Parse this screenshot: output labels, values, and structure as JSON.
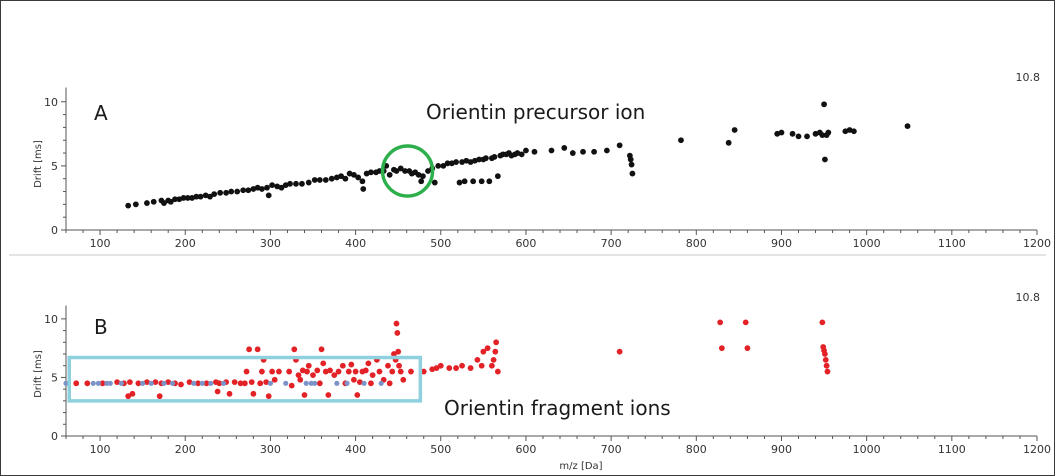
{
  "figure": {
    "divider_color": "#c8c8c8",
    "annotation_colors": {
      "circle": "#2db04b",
      "box": "#8fd0de"
    }
  },
  "chart_data": [
    {
      "type": "scatter",
      "panel_label": "A",
      "corner_value": "10.8",
      "ylabel": "Drift [ms]",
      "xlabel": "",
      "xlim": [
        60,
        1200
      ],
      "ylim": [
        0,
        10.8
      ],
      "x_ticks": [
        100,
        200,
        300,
        400,
        500,
        600,
        700,
        800,
        900,
        1000,
        1100,
        1200
      ],
      "y_ticks": [
        0,
        5,
        10
      ],
      "annotation": {
        "text": "Orientin precursor ion",
        "shape": "circle",
        "center": [
          461,
          4.6
        ]
      },
      "series": [
        {
          "color": "#111111",
          "points": [
            [
              133,
              1.9
            ],
            [
              142,
              2.0
            ],
            [
              155,
              2.1
            ],
            [
              163,
              2.2
            ],
            [
              172,
              2.3
            ],
            [
              175,
              2.1
            ],
            [
              180,
              2.3
            ],
            [
              183,
              2.2
            ],
            [
              188,
              2.4
            ],
            [
              193,
              2.4
            ],
            [
              198,
              2.5
            ],
            [
              203,
              2.5
            ],
            [
              208,
              2.5
            ],
            [
              213,
              2.6
            ],
            [
              218,
              2.6
            ],
            [
              224,
              2.7
            ],
            [
              229,
              2.6
            ],
            [
              234,
              2.8
            ],
            [
              241,
              2.9
            ],
            [
              248,
              2.9
            ],
            [
              254,
              3.0
            ],
            [
              261,
              3.0
            ],
            [
              268,
              3.1
            ],
            [
              274,
              3.1
            ],
            [
              280,
              3.2
            ],
            [
              285,
              3.3
            ],
            [
              290,
              3.2
            ],
            [
              296,
              3.3
            ],
            [
              298,
              2.7
            ],
            [
              302,
              3.5
            ],
            [
              308,
              3.4
            ],
            [
              313,
              3.3
            ],
            [
              318,
              3.5
            ],
            [
              323,
              3.6
            ],
            [
              330,
              3.6
            ],
            [
              337,
              3.6
            ],
            [
              345,
              3.7
            ],
            [
              352,
              3.9
            ],
            [
              358,
              3.9
            ],
            [
              365,
              3.9
            ],
            [
              372,
              4.0
            ],
            [
              378,
              4.1
            ],
            [
              383,
              4.2
            ],
            [
              388,
              4.0
            ],
            [
              393,
              4.4
            ],
            [
              398,
              4.3
            ],
            [
              403,
              4.1
            ],
            [
              408,
              3.8
            ],
            [
              409,
              3.2
            ],
            [
              413,
              4.4
            ],
            [
              418,
              4.5
            ],
            [
              424,
              4.5
            ],
            [
              428,
              4.6
            ],
            [
              433,
              4.6
            ],
            [
              436,
              5.0
            ],
            [
              440,
              4.3
            ],
            [
              445,
              4.7
            ],
            [
              448,
              4.6
            ],
            [
              453,
              4.8
            ],
            [
              458,
              4.6
            ],
            [
              463,
              4.6
            ],
            [
              466,
              4.4
            ],
            [
              470,
              4.5
            ],
            [
              474,
              4.3
            ],
            [
              477,
              3.8
            ],
            [
              479,
              4.2
            ],
            [
              485,
              4.6
            ],
            [
              490,
              4.8
            ],
            [
              493,
              3.7
            ],
            [
              497,
              5.0
            ],
            [
              503,
              5.0
            ],
            [
              508,
              5.2
            ],
            [
              513,
              5.2
            ],
            [
              518,
              5.3
            ],
            [
              522,
              3.7
            ],
            [
              525,
              5.3
            ],
            [
              528,
              3.8
            ],
            [
              530,
              5.4
            ],
            [
              535,
              5.3
            ],
            [
              538,
              3.8
            ],
            [
              540,
              5.4
            ],
            [
              545,
              5.5
            ],
            [
              548,
              3.8
            ],
            [
              550,
              5.5
            ],
            [
              553,
              5.6
            ],
            [
              557,
              3.8
            ],
            [
              560,
              5.6
            ],
            [
              563,
              5.7
            ],
            [
              567,
              4.2
            ],
            [
              570,
              5.8
            ],
            [
              573,
              5.9
            ],
            [
              577,
              5.9
            ],
            [
              580,
              6.0
            ],
            [
              583,
              5.8
            ],
            [
              587,
              5.9
            ],
            [
              590,
              6.0
            ],
            [
              595,
              5.9
            ],
            [
              600,
              6.2
            ],
            [
              610,
              6.1
            ],
            [
              630,
              6.2
            ],
            [
              645,
              6.4
            ],
            [
              655,
              6.0
            ],
            [
              667,
              6.1
            ],
            [
              680,
              6.1
            ],
            [
              695,
              6.2
            ],
            [
              710,
              6.6
            ],
            [
              722,
              5.8
            ],
            [
              723,
              5.5
            ],
            [
              724,
              5.1
            ],
            [
              725,
              4.4
            ],
            [
              782,
              7.0
            ],
            [
              838,
              6.8
            ],
            [
              845,
              7.8
            ],
            [
              895,
              7.5
            ],
            [
              900,
              7.6
            ],
            [
              913,
              7.5
            ],
            [
              920,
              7.3
            ],
            [
              930,
              7.3
            ],
            [
              940,
              7.5
            ],
            [
              945,
              7.6
            ],
            [
              948,
              7.4
            ],
            [
              950,
              9.8
            ],
            [
              951,
              5.5
            ],
            [
              953,
              7.4
            ],
            [
              955,
              7.6
            ],
            [
              975,
              7.7
            ],
            [
              980,
              7.8
            ],
            [
              985,
              7.7
            ],
            [
              1048,
              8.1
            ]
          ]
        }
      ]
    },
    {
      "type": "scatter",
      "panel_label": "B",
      "corner_value": "10.8",
      "ylabel": "Drift [ms]",
      "xlabel": "m/z [Da]",
      "xlim": [
        60,
        1200
      ],
      "ylim": [
        0,
        10.8
      ],
      "x_ticks": [
        100,
        200,
        300,
        400,
        500,
        600,
        700,
        800,
        900,
        1000,
        1100,
        1200
      ],
      "y_ticks": [
        0,
        5,
        10
      ],
      "annotation": {
        "text": "Orientin fragment ions",
        "shape": "box",
        "x_range": [
          65,
          476
        ],
        "y_range": [
          3.0,
          6.7
        ]
      },
      "series": [
        {
          "color": "#e32227",
          "points": [
            [
              72,
              4.5
            ],
            [
              85,
              4.5
            ],
            [
              103,
              4.5
            ],
            [
              120,
              4.6
            ],
            [
              128,
              4.5
            ],
            [
              133,
              3.4
            ],
            [
              135,
              4.6
            ],
            [
              138,
              3.6
            ],
            [
              145,
              4.5
            ],
            [
              155,
              4.6
            ],
            [
              165,
              4.6
            ],
            [
              170,
              3.4
            ],
            [
              172,
              4.5
            ],
            [
              180,
              4.6
            ],
            [
              188,
              4.5
            ],
            [
              195,
              4.4
            ],
            [
              205,
              4.6
            ],
            [
              215,
              4.5
            ],
            [
              225,
              4.5
            ],
            [
              236,
              4.6
            ],
            [
              238,
              3.8
            ],
            [
              240,
              4.5
            ],
            [
              248,
              4.6
            ],
            [
              252,
              3.6
            ],
            [
              258,
              4.6
            ],
            [
              265,
              4.5
            ],
            [
              270,
              4.5
            ],
            [
              272,
              5.5
            ],
            [
              275,
              7.4
            ],
            [
              278,
              4.6
            ],
            [
              280,
              3.6
            ],
            [
              285,
              7.4
            ],
            [
              288,
              4.5
            ],
            [
              290,
              5.5
            ],
            [
              292,
              6.5
            ],
            [
              295,
              4.6
            ],
            [
              298,
              3.4
            ],
            [
              302,
              5.5
            ],
            [
              305,
              4.8
            ],
            [
              310,
              5.5
            ],
            [
              322,
              5.5
            ],
            [
              325,
              4.3
            ],
            [
              328,
              7.4
            ],
            [
              330,
              6.5
            ],
            [
              333,
              5.2
            ],
            [
              335,
              4.8
            ],
            [
              338,
              5.6
            ],
            [
              340,
              3.5
            ],
            [
              343,
              5.5
            ],
            [
              345,
              6.0
            ],
            [
              350,
              5.2
            ],
            [
              355,
              5.6
            ],
            [
              358,
              4.5
            ],
            [
              360,
              7.4
            ],
            [
              362,
              6.2
            ],
            [
              365,
              5.5
            ],
            [
              368,
              3.5
            ],
            [
              370,
              5.6
            ],
            [
              375,
              5.2
            ],
            [
              380,
              5.5
            ],
            [
              385,
              6.0
            ],
            [
              388,
              4.5
            ],
            [
              392,
              5.5
            ],
            [
              395,
              6.1
            ],
            [
              398,
              4.8
            ],
            [
              400,
              5.5
            ],
            [
              402,
              3.5
            ],
            [
              405,
              4.6
            ],
            [
              408,
              5.5
            ],
            [
              412,
              5.6
            ],
            [
              415,
              6.2
            ],
            [
              418,
              4.5
            ],
            [
              420,
              5.2
            ],
            [
              425,
              6.5
            ],
            [
              428,
              5.5
            ],
            [
              433,
              4.8
            ],
            [
              438,
              6.0
            ],
            [
              440,
              4.5
            ],
            [
              443,
              5.5
            ],
            [
              445,
              7.0
            ],
            [
              447,
              6.5
            ],
            [
              448,
              9.6
            ],
            [
              449,
              8.8
            ],
            [
              450,
              7.2
            ],
            [
              451,
              6.0
            ],
            [
              453,
              5.5
            ],
            [
              456,
              4.8
            ],
            [
              465,
              5.5
            ],
            [
              480,
              5.5
            ],
            [
              490,
              5.7
            ],
            [
              495,
              5.8
            ],
            [
              500,
              6.0
            ],
            [
              510,
              5.8
            ],
            [
              518,
              5.8
            ],
            [
              525,
              6.0
            ],
            [
              535,
              5.8
            ],
            [
              543,
              6.5
            ],
            [
              548,
              6.0
            ],
            [
              550,
              7.2
            ],
            [
              555,
              7.5
            ],
            [
              560,
              6.0
            ],
            [
              562,
              6.5
            ],
            [
              564,
              7.2
            ],
            [
              565,
              8.0
            ],
            [
              567,
              5.5
            ],
            [
              710,
              7.2
            ],
            [
              828,
              9.7
            ],
            [
              830,
              7.5
            ],
            [
              858,
              9.7
            ],
            [
              860,
              7.5
            ],
            [
              948,
              9.7
            ],
            [
              949,
              7.6
            ],
            [
              950,
              7.3
            ],
            [
              951,
              7.0
            ],
            [
              952,
              6.5
            ],
            [
              953,
              6.0
            ],
            [
              954,
              5.5
            ]
          ]
        },
        {
          "color": "#7b93c8",
          "points": [
            [
              60,
              4.5
            ],
            [
              92,
              4.5
            ],
            [
              98,
              4.5
            ],
            [
              108,
              4.5
            ],
            [
              112,
              4.5
            ],
            [
              125,
              4.5
            ],
            [
              150,
              4.5
            ],
            [
              160,
              4.5
            ],
            [
              175,
              4.5
            ],
            [
              185,
              4.5
            ],
            [
              210,
              4.5
            ],
            [
              220,
              4.5
            ],
            [
              230,
              4.5
            ],
            [
              245,
              4.5
            ],
            [
              300,
              4.5
            ],
            [
              318,
              4.5
            ],
            [
              342,
              4.5
            ],
            [
              348,
              4.5
            ],
            [
              352,
              4.5
            ],
            [
              378,
              4.5
            ],
            [
              390,
              4.5
            ],
            [
              410,
              4.5
            ],
            [
              430,
              4.5
            ]
          ]
        }
      ]
    }
  ]
}
